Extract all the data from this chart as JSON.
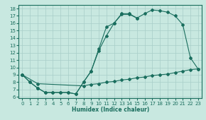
{
  "xlabel": "Humidex (Indice chaleur)",
  "background_color": "#c8e8e0",
  "grid_color": "#a8cec8",
  "line_color": "#1a6e5e",
  "xlim": [
    -0.5,
    23.5
  ],
  "ylim": [
    5.8,
    18.5
  ],
  "yticks": [
    6,
    7,
    8,
    9,
    10,
    11,
    12,
    13,
    14,
    15,
    16,
    17,
    18
  ],
  "xticks": [
    0,
    1,
    2,
    3,
    4,
    5,
    6,
    7,
    8,
    9,
    10,
    11,
    12,
    13,
    14,
    15,
    16,
    17,
    18,
    19,
    20,
    21,
    22,
    23
  ],
  "line1_x": [
    0,
    1,
    2,
    3,
    4,
    5,
    6,
    7,
    8,
    9,
    10,
    11,
    12,
    13,
    14,
    15
  ],
  "line1_y": [
    9.0,
    8.0,
    7.2,
    6.6,
    6.6,
    6.6,
    6.6,
    6.4,
    8.0,
    9.5,
    12.3,
    14.3,
    16.0,
    17.2,
    17.2,
    16.7
  ],
  "line2_x": [
    0,
    1,
    2,
    3,
    4,
    5,
    6,
    7,
    8,
    9,
    10,
    11,
    12,
    13,
    14,
    15,
    16,
    17,
    18,
    19,
    20,
    21,
    22,
    23
  ],
  "line2_y": [
    9.0,
    8.0,
    7.2,
    6.6,
    6.6,
    6.6,
    6.6,
    6.4,
    8.0,
    9.5,
    12.5,
    15.5,
    16.0,
    17.3,
    17.3,
    16.7,
    17.3,
    17.8,
    17.7,
    17.5,
    17.0,
    15.8,
    11.3,
    9.8
  ],
  "line3_x": [
    0,
    2,
    8,
    9,
    10,
    11,
    12,
    13,
    14,
    15,
    16,
    17,
    18,
    19,
    20,
    21,
    22,
    23
  ],
  "line3_y": [
    9.0,
    7.8,
    7.5,
    7.7,
    7.8,
    8.0,
    8.1,
    8.3,
    8.4,
    8.6,
    8.7,
    8.9,
    9.0,
    9.1,
    9.3,
    9.5,
    9.7,
    9.8
  ]
}
